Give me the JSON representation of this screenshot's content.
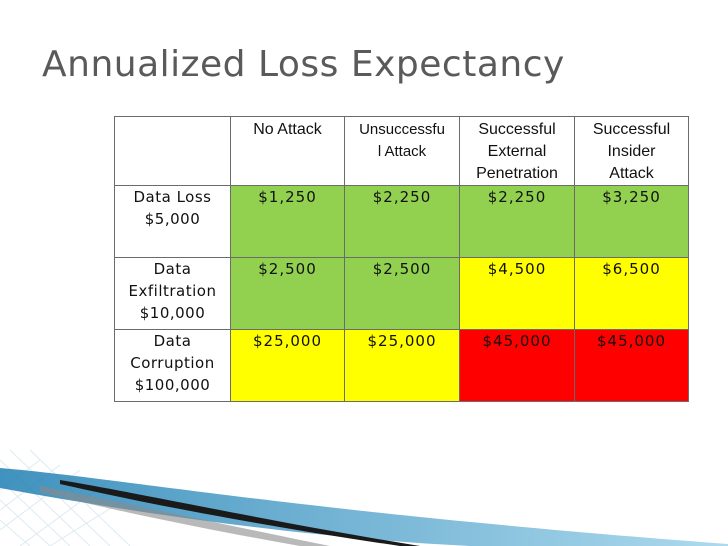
{
  "slide": {
    "title": "Annualized Loss Expectancy"
  },
  "table": {
    "headers": [
      "",
      "No Attack",
      "Unsuccessful Attack",
      "Successful External Penetration",
      "Successful Insider Attack"
    ],
    "header_display": {
      "no_attack": "No Attack",
      "unsuccessful_l1": "Unsuccessfu",
      "unsuccessful_l2": "l Attack",
      "ext_l1": "Successful",
      "ext_l2": "External",
      "ext_l3": "Penetration",
      "ins_l1": "Successful",
      "ins_l2": "Insider",
      "ins_l3": "Attack"
    },
    "rows": [
      {
        "label_lines": [
          "Data Loss",
          "$5,000"
        ],
        "values": [
          "$1,250",
          "$2,250",
          "$2,250",
          "$3,250"
        ],
        "colors": [
          "#92d050",
          "#92d050",
          "#92d050",
          "#92d050"
        ]
      },
      {
        "label_lines": [
          "Data",
          "Exfiltration",
          "$10,000"
        ],
        "values": [
          "$2,500",
          "$2,500",
          "$4,500",
          "$6,500"
        ],
        "colors": [
          "#92d050",
          "#92d050",
          "#ffff00",
          "#ffff00"
        ]
      },
      {
        "label_lines": [
          "Data",
          "Corruption",
          "$100,000"
        ],
        "values": [
          "$25,000",
          "$25,000",
          "$45,000",
          "$45,000"
        ],
        "colors": [
          "#ffff00",
          "#ffff00",
          "#ff0000",
          "#ff0000"
        ]
      }
    ]
  },
  "colors": {
    "low": "#92d050",
    "medium": "#ffff00",
    "high": "#ff0000",
    "title": "#5a5a5a",
    "accent_blue": "#3d9bc7"
  }
}
